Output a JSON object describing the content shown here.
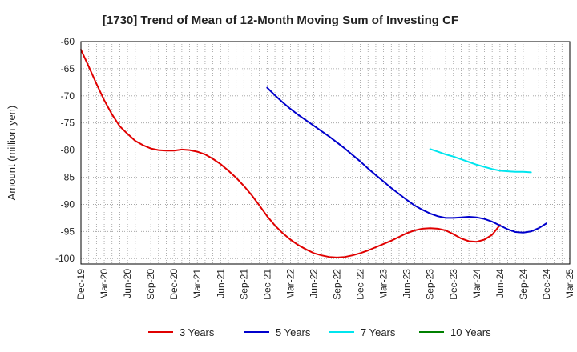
{
  "chart_data": {
    "type": "line",
    "title": "[1730]  Trend of Mean of 12-Month Moving Sum of Investing CF",
    "xlabel": "",
    "ylabel": "Amount (million yen)",
    "ylim": [
      -101,
      -60
    ],
    "yticks": [
      -60,
      -65,
      -70,
      -75,
      -80,
      -85,
      -90,
      -95,
      -100
    ],
    "x_labels": [
      "Dec-19",
      "Mar-20",
      "Jun-20",
      "Sep-20",
      "Dec-20",
      "Mar-21",
      "Jun-21",
      "Sep-21",
      "Dec-21",
      "Mar-22",
      "Jun-22",
      "Sep-22",
      "Dec-22",
      "Mar-23",
      "Jun-23",
      "Sep-23",
      "Dec-23",
      "Mar-24",
      "Jun-24",
      "Sep-24",
      "Dec-24",
      "Mar-25"
    ],
    "last_label": "Mar-25",
    "grid": true,
    "legend_position": "bottom",
    "series": [
      {
        "name": "3 Years",
        "color": "#e00000",
        "start_index": 0,
        "values": [
          -61.5,
          -64.6,
          -67.8,
          -70.8,
          -73.4,
          -75.6,
          -77.0,
          -78.3,
          -79.1,
          -79.7,
          -80.0,
          -80.1,
          -80.1,
          -79.9,
          -80.0,
          -80.3,
          -80.8,
          -81.6,
          -82.6,
          -83.8,
          -85.1,
          -86.6,
          -88.3,
          -90.2,
          -92.2,
          -93.9,
          -95.3,
          -96.5,
          -97.5,
          -98.3,
          -99.0,
          -99.4,
          -99.7,
          -99.8,
          -99.7,
          -99.4,
          -99.0,
          -98.5,
          -97.9,
          -97.3,
          -96.7,
          -96.0,
          -95.3,
          -94.8,
          -94.5,
          -94.4,
          -94.5,
          -94.8,
          -95.5,
          -96.3,
          -96.8,
          -96.9,
          -96.5,
          -95.6,
          -93.8
        ]
      },
      {
        "name": "5 Years",
        "color": "#0000cc",
        "start_index": 24,
        "values": [
          -68.5,
          -69.9,
          -71.2,
          -72.4,
          -73.5,
          -74.5,
          -75.5,
          -76.5,
          -77.5,
          -78.6,
          -79.7,
          -80.9,
          -82.1,
          -83.4,
          -84.6,
          -85.8,
          -87.0,
          -88.1,
          -89.2,
          -90.2,
          -91.0,
          -91.7,
          -92.2,
          -92.5,
          -92.5,
          -92.4,
          -92.3,
          -92.4,
          -92.7,
          -93.2,
          -93.9,
          -94.6,
          -95.1,
          -95.2,
          -95.0,
          -94.4,
          -93.5
        ]
      },
      {
        "name": "7 Years",
        "color": "#00e5ee",
        "start_index": 45,
        "values": [
          -79.8,
          -80.3,
          -80.8,
          -81.2,
          -81.7,
          -82.2,
          -82.7,
          -83.1,
          -83.5,
          -83.8,
          -83.9,
          -84.0,
          -84.0,
          -84.1
        ]
      },
      {
        "name": "10 Years",
        "color": "#008000",
        "start_index": 0,
        "values": []
      }
    ]
  }
}
